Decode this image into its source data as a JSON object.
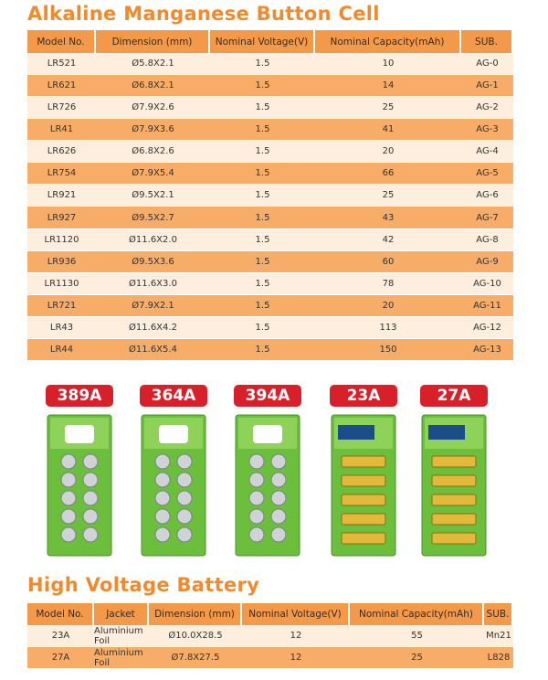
{
  "title": "Alkaline Manganese Button Cell",
  "table": {
    "header": [
      "Model No.",
      "Dimension (mm)",
      "Nominal Voltage(V)",
      "Nominal Capacity(mAh)",
      "SUB."
    ],
    "rows": [
      [
        "LR521",
        "Ø5.8X2.1",
        "1.5",
        "10",
        "AG-0"
      ],
      [
        "LR621",
        "Ø6.8X2.1",
        "1.5",
        "14",
        "AG-1"
      ],
      [
        "LR726",
        "Ø7.9X2.6",
        "1.5",
        "25",
        "AG-2"
      ],
      [
        "LR41",
        "Ø7.9X3.6",
        "1.5",
        "41",
        "AG-3"
      ],
      [
        "LR626",
        "Ø6.8X2.6",
        "1.5",
        "20",
        "AG-4"
      ],
      [
        "LR754",
        "Ø7.9X5.4",
        "1.5",
        "66",
        "AG-5"
      ],
      [
        "LR921",
        "Ø9.5X2.1",
        "1.5",
        "25",
        "AG-6"
      ],
      [
        "LR927",
        "Ø9.5X2.7",
        "1.5",
        "43",
        "AG-7"
      ],
      [
        "LR1120",
        "Ø11.6X2.0",
        "1.5",
        "42",
        "AG-8"
      ],
      [
        "LR936",
        "Ø9.5X3.6",
        "1.5",
        "60",
        "AG-9"
      ],
      [
        "LR1130",
        "Ø11.6X3.0",
        "1.5",
        "78",
        "AG-10"
      ],
      [
        "LR721",
        "Ø7.9X2.1",
        "1.5",
        "20",
        "AG-11"
      ],
      [
        "LR43",
        "Ø11.6X4.2",
        "1.5",
        "113",
        "AG-12"
      ],
      [
        "LR44",
        "Ø11.6X5.4",
        "1.5",
        "150",
        "AG-13"
      ]
    ]
  },
  "products": [
    "389A",
    "364A",
    "394A",
    "23A",
    "27A"
  ],
  "title2": "High Voltage Battery",
  "table2": {
    "header": [
      "Model No.",
      "Jacket",
      "Dimension (mm)",
      "Nominal Voltage(V)",
      "Nominal Capacity(mAh)",
      "SUB."
    ],
    "rows": [
      [
        "23A",
        "Aluminium Foil",
        "Ø10.0X28.5",
        "12",
        "55",
        "Mn21"
      ],
      [
        "27A",
        "Aluminium Foil",
        "Ø7.8X27.5",
        "12",
        "25",
        "L828"
      ]
    ]
  }
}
